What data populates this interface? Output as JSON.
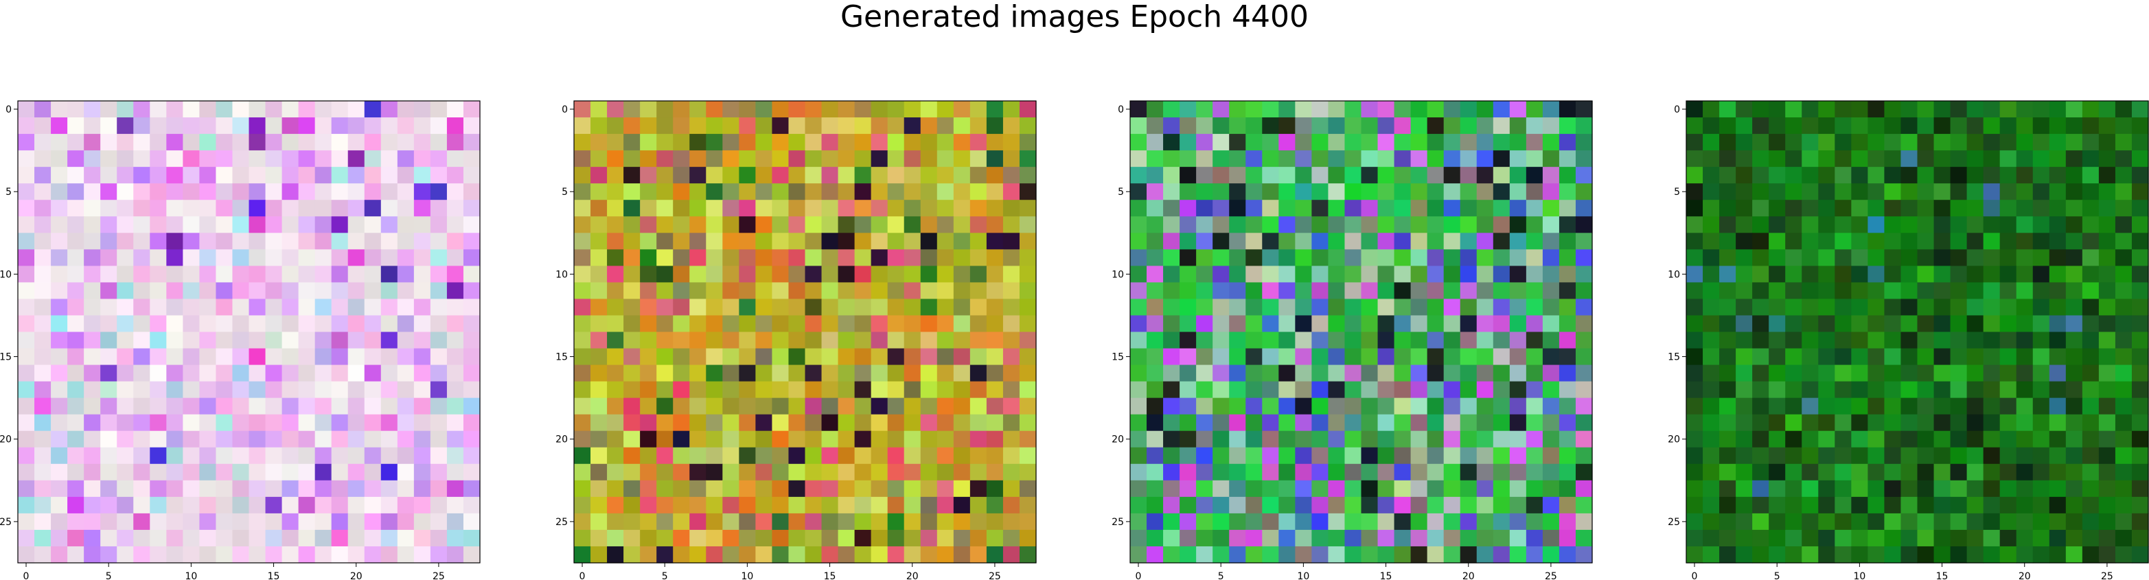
{
  "figure": {
    "title": "Generated images Epoch 4400"
  },
  "chart_data": [
    {
      "type": "heatmap",
      "palette": "pink-white",
      "base_color": "#f0dcf0",
      "xlim": [
        0,
        27
      ],
      "ylim": [
        0,
        27
      ],
      "xticks": [
        0,
        5,
        10,
        15,
        20,
        25
      ],
      "yticks": [
        0,
        5,
        10,
        15,
        20,
        25
      ],
      "tick_labels": [
        "0",
        "5",
        "10",
        "15",
        "20",
        "25"
      ],
      "grid": false
    },
    {
      "type": "heatmap",
      "palette": "olive-yellow",
      "base_color": "#a8b030",
      "xlim": [
        0,
        27
      ],
      "ylim": [
        0,
        27
      ],
      "xticks": [
        0,
        5,
        10,
        15,
        20,
        25
      ],
      "yticks": [
        0,
        5,
        10,
        15,
        20,
        25
      ],
      "tick_labels": [
        "0",
        "5",
        "10",
        "15",
        "20",
        "25"
      ],
      "grid": false
    },
    {
      "type": "heatmap",
      "palette": "green-blue",
      "base_color": "#30a040",
      "xlim": [
        0,
        27
      ],
      "ylim": [
        0,
        27
      ],
      "xticks": [
        0,
        5,
        10,
        15,
        20,
        25
      ],
      "yticks": [
        0,
        5,
        10,
        15,
        20,
        25
      ],
      "tick_labels": [
        "0",
        "5",
        "10",
        "15",
        "20",
        "25"
      ],
      "grid": false
    },
    {
      "type": "heatmap",
      "palette": "dark-green",
      "base_color": "#107010",
      "xlim": [
        0,
        27
      ],
      "ylim": [
        0,
        27
      ],
      "xticks": [
        0,
        5,
        10,
        15,
        20,
        25
      ],
      "yticks": [
        0,
        5,
        10,
        15,
        20,
        25
      ],
      "tick_labels": [
        "0",
        "5",
        "10",
        "15",
        "20",
        "25"
      ],
      "grid": false
    }
  ]
}
